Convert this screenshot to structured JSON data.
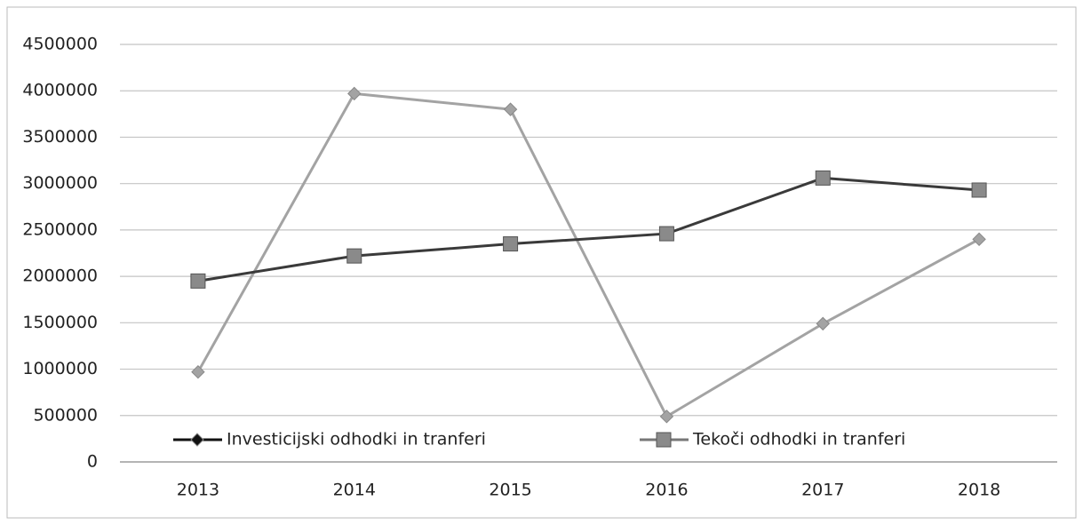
{
  "chart_data": {
    "type": "line",
    "categories": [
      "2013",
      "2014",
      "2015",
      "2016",
      "2017",
      "2018"
    ],
    "series": [
      {
        "name": "Investicijski odhodki in tranferi",
        "color": "#a3a3a3",
        "marker": "diamond",
        "values": [
          970000,
          3970000,
          3800000,
          490000,
          1490000,
          2400000
        ]
      },
      {
        "name": "Tekoči odhodki in tranferi",
        "color": "#3a3a3a",
        "marker": "square",
        "values": [
          1950000,
          2220000,
          2350000,
          2460000,
          3060000,
          2930000
        ]
      }
    ],
    "ylim": [
      0,
      4500000
    ],
    "yticks": [
      0,
      500000,
      1000000,
      1500000,
      2000000,
      2500000,
      3000000,
      3500000,
      4000000,
      4500000
    ],
    "grid": true,
    "legend": "bottom"
  }
}
